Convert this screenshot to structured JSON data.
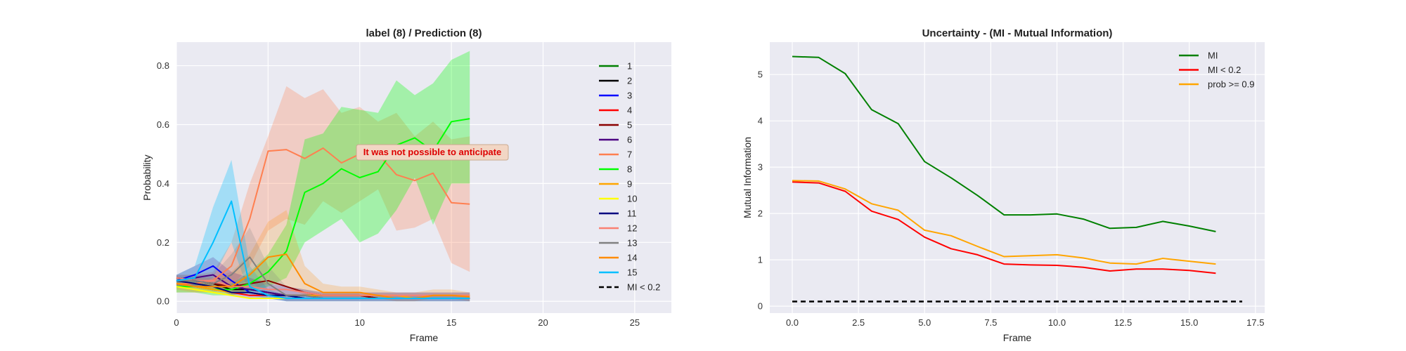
{
  "chart_data": [
    {
      "type": "line",
      "title": "label (8) / Prediction (8)",
      "xlabel": "Frame",
      "ylabel": "Probability",
      "xlim": [
        0,
        27
      ],
      "ylim": [
        -0.04,
        0.88
      ],
      "xticks": [
        0,
        5,
        10,
        15,
        20,
        25
      ],
      "yticks": [
        0.0,
        0.2,
        0.4,
        0.6,
        0.8
      ],
      "xtick_labels": [
        "0",
        "5",
        "10",
        "15",
        "20",
        "25"
      ],
      "ytick_labels": [
        "0.0",
        "0.2",
        "0.4",
        "0.6",
        "0.8"
      ],
      "grid": true,
      "legend_position": "right",
      "annotation": {
        "text": "It was not possible to anticipate",
        "x": 10,
        "y": 0.5
      },
      "x": [
        0,
        1,
        2,
        3,
        4,
        5,
        6,
        7,
        8,
        9,
        10,
        11,
        12,
        13,
        14,
        15,
        16
      ],
      "series": [
        {
          "name": "1",
          "color": "#008000",
          "values": [
            0.07,
            0.06,
            0.05,
            0.03,
            0.03,
            0.02,
            0.02,
            0.01,
            0.01,
            0.01,
            0.01,
            0.01,
            0.01,
            0.01,
            0.01,
            0.01,
            0.01
          ]
        },
        {
          "name": "2",
          "color": "#000000",
          "values": [
            0.08,
            0.07,
            0.06,
            0.04,
            0.04,
            0.03,
            0.02,
            0.02,
            0.02,
            0.02,
            0.02,
            0.01,
            0.01,
            0.01,
            0.01,
            0.01,
            0.01
          ]
        },
        {
          "name": "3",
          "color": "#0000ff",
          "values": [
            0.07,
            0.09,
            0.12,
            0.07,
            0.03,
            0.02,
            0.02,
            0.01,
            0.01,
            0.01,
            0.01,
            0.01,
            0.01,
            0.01,
            0.01,
            0.01,
            0.01
          ]
        },
        {
          "name": "4",
          "color": "#ff0000",
          "values": [
            0.06,
            0.05,
            0.04,
            0.03,
            0.02,
            0.02,
            0.01,
            0.01,
            0.01,
            0.01,
            0.01,
            0.01,
            0.01,
            0.01,
            0.01,
            0.01,
            0.01
          ]
        },
        {
          "name": "5",
          "color": "#8b0000",
          "values": [
            0.08,
            0.07,
            0.06,
            0.05,
            0.06,
            0.07,
            0.05,
            0.03,
            0.02,
            0.02,
            0.02,
            0.01,
            0.01,
            0.01,
            0.01,
            0.01,
            0.01
          ]
        },
        {
          "name": "6",
          "color": "#4b0082",
          "values": [
            0.07,
            0.08,
            0.09,
            0.05,
            0.04,
            0.03,
            0.02,
            0.02,
            0.01,
            0.01,
            0.01,
            0.01,
            0.01,
            0.01,
            0.01,
            0.01,
            0.01
          ]
        },
        {
          "name": "7",
          "color": "#ff7f50",
          "values": [
            0.06,
            0.06,
            0.07,
            0.12,
            0.28,
            0.51,
            0.515,
            0.485,
            0.52,
            0.47,
            0.5,
            0.5,
            0.43,
            0.41,
            0.435,
            0.335,
            0.33
          ]
        },
        {
          "name": "8",
          "color": "#00ff00",
          "values": [
            0.05,
            0.05,
            0.04,
            0.04,
            0.06,
            0.1,
            0.17,
            0.37,
            0.4,
            0.45,
            0.42,
            0.44,
            0.53,
            0.555,
            0.51,
            0.61,
            0.62
          ]
        },
        {
          "name": "9",
          "color": "#ffa500",
          "values": [
            0.06,
            0.05,
            0.04,
            0.03,
            0.03,
            0.02,
            0.02,
            0.02,
            0.02,
            0.02,
            0.02,
            0.02,
            0.02,
            0.01,
            0.02,
            0.02,
            0.02
          ]
        },
        {
          "name": "10",
          "color": "#ffff00",
          "values": [
            0.05,
            0.04,
            0.03,
            0.02,
            0.01,
            0.01,
            0.01,
            0.01,
            0.01,
            0.01,
            0.01,
            0.01,
            0.01,
            0.01,
            0.01,
            0.01,
            0.01
          ]
        },
        {
          "name": "11",
          "color": "#000080",
          "values": [
            0.07,
            0.06,
            0.05,
            0.03,
            0.03,
            0.02,
            0.02,
            0.01,
            0.01,
            0.01,
            0.01,
            0.01,
            0.01,
            0.01,
            0.01,
            0.01,
            0.01
          ]
        },
        {
          "name": "12",
          "color": "#fa8072",
          "values": [
            0.08,
            0.07,
            0.07,
            0.05,
            0.05,
            0.04,
            0.04,
            0.03,
            0.02,
            0.02,
            0.02,
            0.02,
            0.02,
            0.02,
            0.02,
            0.02,
            0.02
          ]
        },
        {
          "name": "13",
          "color": "#808080",
          "values": [
            0.07,
            0.07,
            0.06,
            0.09,
            0.15,
            0.06,
            0.02,
            0.02,
            0.01,
            0.01,
            0.01,
            0.01,
            0.01,
            0.01,
            0.01,
            0.01,
            0.01
          ]
        },
        {
          "name": "14",
          "color": "#ff8c00",
          "values": [
            0.06,
            0.05,
            0.05,
            0.05,
            0.09,
            0.15,
            0.16,
            0.06,
            0.03,
            0.03,
            0.03,
            0.02,
            0.01,
            0.01,
            0.02,
            0.02,
            0.015
          ]
        },
        {
          "name": "15",
          "color": "#00bfff",
          "values": [
            0.07,
            0.08,
            0.2,
            0.34,
            0.05,
            0.02,
            0.01,
            0.01,
            0.01,
            0.01,
            0.01,
            0.01,
            0.01,
            0.01,
            0.01,
            0.01,
            0.01
          ]
        }
      ],
      "bands": [
        {
          "name": "7",
          "color": "#ff7f50",
          "opacity": 0.28,
          "lower": [
            0.03,
            0.03,
            0.03,
            0.05,
            0.12,
            0.24,
            0.28,
            0.26,
            0.34,
            0.3,
            0.34,
            0.38,
            0.24,
            0.25,
            0.28,
            0.13,
            0.1
          ],
          "upper": [
            0.09,
            0.09,
            0.1,
            0.2,
            0.4,
            0.56,
            0.73,
            0.69,
            0.72,
            0.64,
            0.66,
            0.61,
            0.64,
            0.56,
            0.61,
            0.55,
            0.56
          ]
        },
        {
          "name": "8",
          "color": "#00ff00",
          "opacity": 0.3,
          "lower": [
            0.03,
            0.03,
            0.02,
            0.02,
            0.03,
            0.05,
            0.08,
            0.2,
            0.24,
            0.28,
            0.2,
            0.23,
            0.31,
            0.42,
            0.26,
            0.4,
            0.4
          ],
          "upper": [
            0.07,
            0.07,
            0.06,
            0.06,
            0.1,
            0.16,
            0.26,
            0.55,
            0.57,
            0.66,
            0.65,
            0.64,
            0.75,
            0.7,
            0.74,
            0.82,
            0.85
          ]
        },
        {
          "name": "15",
          "color": "#00bfff",
          "opacity": 0.3,
          "lower": [
            0.05,
            0.05,
            0.08,
            0.2,
            0.02,
            0.01,
            0.0,
            0.0,
            0.0,
            0.0,
            0.0,
            0.0,
            0.0,
            0.0,
            0.0,
            0.0,
            0.0
          ],
          "upper": [
            0.09,
            0.12,
            0.32,
            0.48,
            0.12,
            0.04,
            0.02,
            0.02,
            0.02,
            0.02,
            0.02,
            0.02,
            0.02,
            0.02,
            0.02,
            0.02,
            0.02
          ]
        },
        {
          "name": "14",
          "color": "#ff8c00",
          "opacity": 0.22,
          "lower": [
            0.04,
            0.03,
            0.03,
            0.02,
            0.04,
            0.06,
            0.05,
            0.02,
            0.01,
            0.01,
            0.01,
            0.01,
            0.0,
            0.0,
            0.01,
            0.01,
            0.0
          ],
          "upper": [
            0.08,
            0.08,
            0.08,
            0.1,
            0.16,
            0.27,
            0.31,
            0.12,
            0.06,
            0.05,
            0.05,
            0.04,
            0.03,
            0.03,
            0.04,
            0.04,
            0.03
          ]
        },
        {
          "name": "13",
          "color": "#808080",
          "opacity": 0.22,
          "lower": [
            0.05,
            0.05,
            0.04,
            0.05,
            0.07,
            0.02,
            0.0,
            0.0,
            0.0,
            0.0,
            0.0,
            0.0,
            0.0,
            0.0,
            0.0,
            0.0,
            0.0
          ],
          "upper": [
            0.09,
            0.09,
            0.09,
            0.16,
            0.25,
            0.12,
            0.05,
            0.04,
            0.03,
            0.03,
            0.03,
            0.03,
            0.03,
            0.03,
            0.03,
            0.03,
            0.03
          ]
        },
        {
          "name": "6",
          "color": "#4b0082",
          "opacity": 0.2,
          "lower": [
            0.05,
            0.05,
            0.05,
            0.02,
            0.01,
            0.01,
            0.0,
            0.0,
            0.0,
            0.0,
            0.0,
            0.0,
            0.0,
            0.0,
            0.0,
            0.0,
            0.0
          ],
          "upper": [
            0.09,
            0.12,
            0.15,
            0.1,
            0.08,
            0.06,
            0.05,
            0.04,
            0.03,
            0.03,
            0.03,
            0.03,
            0.03,
            0.03,
            0.03,
            0.03,
            0.03
          ]
        }
      ],
      "reference_line": {
        "name": "MI < 0.2",
        "color": "#000000",
        "style": "dashed"
      }
    },
    {
      "type": "line",
      "title": "Uncertainty - (MI - Mutual Information)",
      "xlabel": "Frame",
      "ylabel": "Mutual Information",
      "xlim": [
        -0.85,
        17.85
      ],
      "ylim": [
        -0.15,
        5.7
      ],
      "xticks": [
        0,
        2.5,
        5,
        7.5,
        10,
        12.5,
        15,
        17.5
      ],
      "yticks": [
        0,
        1,
        2,
        3,
        4,
        5
      ],
      "xtick_labels": [
        "0.0",
        "2.5",
        "5.0",
        "7.5",
        "10.0",
        "12.5",
        "15.0",
        "17.5"
      ],
      "ytick_labels": [
        "0",
        "1",
        "2",
        "3",
        "4",
        "5"
      ],
      "grid": true,
      "legend_position": "top-right",
      "x": [
        0,
        1,
        2,
        3,
        4,
        5,
        6,
        7,
        8,
        9,
        10,
        11,
        12,
        13,
        14,
        15,
        16
      ],
      "series": [
        {
          "name": "MI",
          "color": "#008000",
          "values": [
            5.39,
            5.37,
            5.02,
            4.24,
            3.94,
            3.12,
            2.77,
            2.39,
            1.97,
            1.97,
            1.99,
            1.88,
            1.68,
            1.7,
            1.83,
            1.73,
            1.61
          ]
        },
        {
          "name": "MI < 0.2",
          "color": "#ff0000",
          "values": [
            2.68,
            2.66,
            2.48,
            2.05,
            1.87,
            1.49,
            1.24,
            1.11,
            0.91,
            0.89,
            0.88,
            0.84,
            0.76,
            0.8,
            0.8,
            0.77,
            0.71
          ]
        },
        {
          "name": "prob >= 0.9",
          "color": "#ffa500",
          "values": [
            2.71,
            2.7,
            2.53,
            2.21,
            2.07,
            1.64,
            1.52,
            1.29,
            1.07,
            1.09,
            1.11,
            1.04,
            0.93,
            0.91,
            1.03,
            0.97,
            0.91
          ]
        }
      ],
      "reference_line": {
        "name": "",
        "color": "#000000",
        "style": "dashed",
        "x": [
          0,
          17
        ],
        "y": 0.1
      }
    }
  ]
}
